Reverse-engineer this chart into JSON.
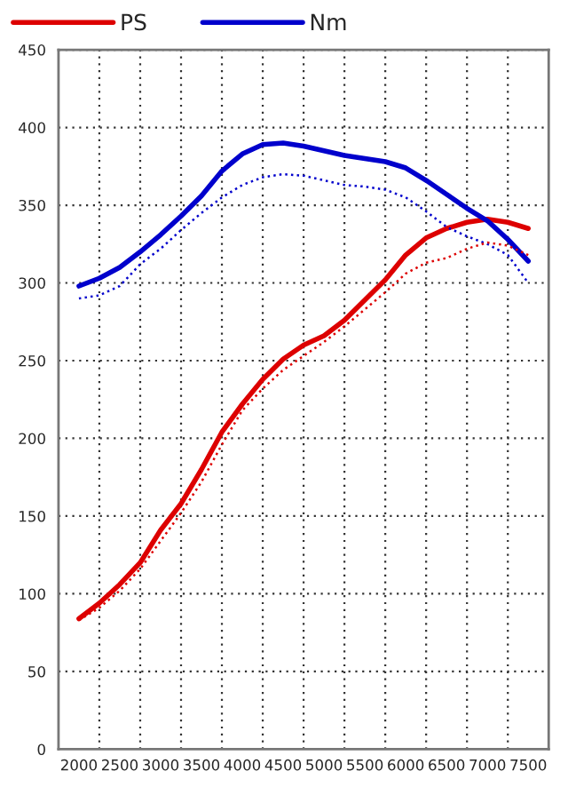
{
  "chart_data": {
    "type": "line",
    "legend": "top",
    "grid": true,
    "marker": "none",
    "x": [
      2000,
      2250,
      2500,
      2750,
      3000,
      3250,
      3500,
      3750,
      4000,
      4250,
      4500,
      4750,
      5000,
      5250,
      5500,
      5750,
      6000,
      6250,
      6500,
      6750,
      7000,
      7250,
      7500
    ],
    "xlim": [
      1750,
      7750
    ],
    "xticks": [
      2000,
      {
        "value": 2250,
        "label": null
      },
      2500,
      {
        "value": 2750,
        "label": null
      },
      3000,
      {
        "value": 3250,
        "label": null
      },
      3500,
      {
        "value": 3750,
        "label": null
      },
      4000,
      {
        "value": 4250,
        "label": null
      },
      4500,
      {
        "value": 4750,
        "label": null
      },
      5000,
      {
        "value": 5250,
        "label": null
      },
      5500,
      {
        "value": 5750,
        "label": null
      },
      6000,
      {
        "value": 6250,
        "label": null
      },
      6500,
      {
        "value": 6750,
        "label": null
      },
      7000,
      {
        "value": 7250,
        "label": null
      },
      7500
    ],
    "ylim": [
      0,
      450
    ],
    "yticks": [
      0,
      50,
      100,
      150,
      200,
      250,
      300,
      350,
      400,
      450
    ],
    "series": [
      {
        "name": "PS",
        "color": "#dd0000",
        "line_style": "solid",
        "values": [
          84,
          94,
          106,
          120,
          141,
          158,
          180,
          204,
          222,
          238,
          251,
          260,
          266,
          276,
          289,
          302,
          318,
          329,
          335,
          339,
          341,
          339,
          335
        ]
      },
      {
        "name": "Nm",
        "color": "#0000cc",
        "line_style": "solid",
        "values": [
          298,
          303,
          310,
          320,
          331,
          343,
          356,
          372,
          383,
          389,
          390,
          388,
          385,
          382,
          380,
          378,
          374,
          366,
          357,
          348,
          340,
          328,
          314
        ]
      },
      {
        "color": "#0000cc",
        "line_style": "dotted",
        "values": [
          290,
          292,
          298,
          312,
          322,
          334,
          345,
          355,
          363,
          368,
          370,
          369,
          366,
          363,
          362,
          360,
          355,
          346,
          336,
          330,
          325,
          318,
          300
        ]
      },
      {
        "color": "#dd0000",
        "line_style": "dotted",
        "values": [
          83,
          91,
          102,
          116,
          134,
          152,
          172,
          196,
          218,
          232,
          244,
          253,
          262,
          272,
          283,
          294,
          306,
          313,
          316,
          322,
          326,
          324,
          318
        ]
      }
    ]
  }
}
